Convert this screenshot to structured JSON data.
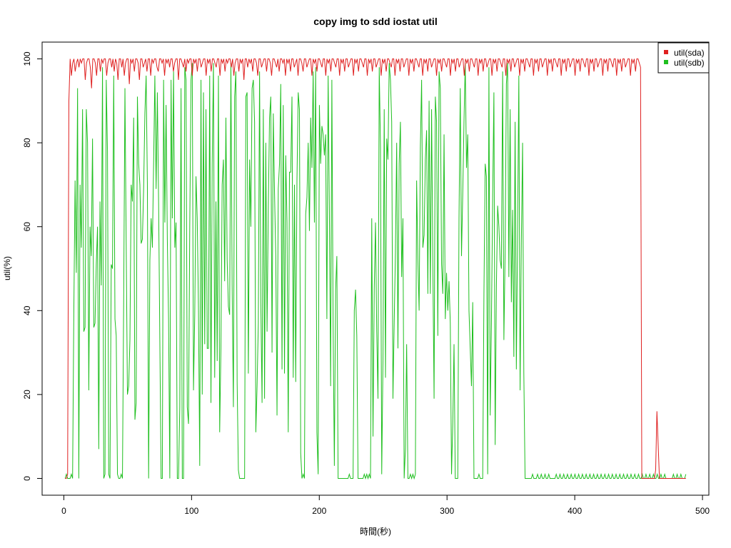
{
  "chart_data": {
    "type": "line",
    "title": "copy img to sdd iostat util",
    "xlabel": "時間(秒)",
    "ylabel": "util(%)",
    "xlim": [
      -17,
      505
    ],
    "ylim": [
      -4,
      104
    ],
    "x_ticks": [
      0,
      100,
      200,
      300,
      400,
      500
    ],
    "y_ticks": [
      0,
      20,
      40,
      60,
      80,
      100
    ],
    "x_tick_labels": [
      "0",
      "100",
      "200",
      "300",
      "400",
      "500"
    ],
    "y_tick_labels": [
      "0",
      "20",
      "40",
      "60",
      "80",
      "100"
    ],
    "legend": {
      "position": "top-right",
      "entries": [
        "util(sda)",
        "util(sdb)"
      ]
    },
    "grid": false,
    "x_start": 1,
    "x_end": 487,
    "series": [
      {
        "name": "util(sda)",
        "color": "#df2020",
        "values": [
          0,
          0,
          1,
          90,
          100,
          96,
          99,
          100,
          97,
          99,
          100,
          98,
          100,
          99,
          100,
          100,
          95,
          99,
          100,
          100,
          98,
          93,
          100,
          100,
          99,
          96,
          100,
          100,
          97,
          100,
          99,
          100,
          100,
          96,
          99,
          100,
          100,
          98,
          100,
          97,
          100,
          99,
          95,
          100,
          100,
          98,
          100,
          96,
          99,
          100,
          100,
          94,
          100,
          99,
          100,
          97,
          100,
          100,
          99,
          95,
          100,
          100,
          98,
          99,
          100,
          97,
          100,
          100,
          96,
          100,
          99,
          100,
          100,
          98,
          97,
          100,
          100,
          99,
          100,
          96,
          100,
          99,
          100,
          98,
          100,
          100,
          97,
          99,
          100,
          100,
          95,
          100,
          100,
          99,
          98,
          100,
          97,
          100,
          99,
          100,
          100,
          96,
          100,
          99,
          100,
          97,
          100,
          100,
          98,
          99,
          100,
          100,
          96,
          100,
          99,
          100,
          97,
          100,
          100,
          99,
          98,
          100,
          100,
          96,
          100,
          99,
          100,
          97,
          100,
          99,
          100,
          100,
          98,
          100,
          96,
          99,
          100,
          100,
          97,
          100,
          99,
          100,
          95,
          100,
          100,
          98,
          100,
          99,
          100,
          97,
          100,
          100,
          99,
          96,
          100,
          100,
          98,
          99,
          100,
          100,
          97,
          100,
          100,
          99,
          96,
          100,
          100,
          99,
          98,
          100,
          97,
          100,
          100,
          99,
          100,
          96,
          100,
          99,
          100,
          97,
          100,
          100,
          98,
          99,
          100,
          96,
          100,
          100,
          99,
          97,
          100,
          100,
          98,
          99,
          100,
          100,
          96,
          100,
          99,
          100,
          97,
          100,
          100,
          99,
          98,
          100,
          100,
          96,
          100,
          99,
          100,
          97,
          100,
          100,
          99,
          98,
          100,
          100,
          96,
          100,
          99,
          100,
          97,
          100,
          100,
          98,
          99,
          100,
          100,
          96,
          100,
          99,
          100,
          97,
          100,
          100,
          99,
          98,
          100,
          100,
          96,
          100,
          99,
          100,
          97,
          100,
          100,
          98,
          99,
          100,
          100,
          96,
          100,
          99,
          100,
          97,
          100,
          100,
          99,
          98,
          100,
          100,
          96,
          100,
          99,
          100,
          97,
          100,
          100,
          98,
          99,
          100,
          100,
          96,
          100,
          99,
          100,
          97,
          100,
          100,
          99,
          98,
          100,
          100,
          96,
          100,
          99,
          100,
          97,
          100,
          100,
          98,
          99,
          100,
          100,
          96,
          100,
          99,
          100,
          97,
          100,
          100,
          99,
          98,
          100,
          100,
          96,
          100,
          99,
          100,
          97,
          100,
          100,
          98,
          99,
          100,
          100,
          96,
          100,
          99,
          100,
          97,
          100,
          100,
          99,
          98,
          100,
          100,
          96,
          100,
          99,
          100,
          97,
          100,
          100,
          98,
          99,
          100,
          100,
          96,
          100,
          99,
          100,
          97,
          100,
          100,
          99,
          98,
          100,
          100,
          96,
          100,
          99,
          100,
          97,
          100,
          100,
          98,
          99,
          100,
          100,
          96,
          100,
          99,
          100,
          97,
          100,
          100,
          99,
          98,
          100,
          100,
          96,
          100,
          99,
          100,
          97,
          100,
          100,
          98,
          99,
          100,
          100,
          96,
          100,
          99,
          100,
          97,
          100,
          100,
          99,
          98,
          100,
          100,
          96,
          100,
          99,
          100,
          97,
          100,
          100,
          98,
          99,
          100,
          100,
          96,
          100,
          99,
          100,
          97,
          100,
          100,
          99,
          98,
          100,
          100,
          96,
          100,
          99,
          100,
          97,
          100,
          100,
          98,
          99,
          100,
          100,
          96,
          100,
          99,
          100,
          97,
          100,
          100,
          99,
          98,
          100,
          100,
          96,
          100,
          99,
          100,
          97,
          100,
          100,
          98,
          99,
          100,
          100,
          96,
          100,
          99,
          100,
          97,
          100,
          100,
          99,
          98,
          0,
          0,
          0,
          0,
          0,
          0,
          0,
          0,
          0,
          0,
          0,
          2,
          16,
          8,
          0,
          0,
          0,
          0,
          0,
          0,
          0,
          0,
          0,
          0,
          0,
          0,
          0,
          0,
          0,
          0,
          0,
          0,
          0,
          0,
          0,
          0
        ]
      },
      {
        "name": "util(sdb)",
        "color": "#1fbf1f",
        "values": [
          0,
          1,
          0,
          0,
          0,
          1,
          0,
          40,
          71,
          49,
          93,
          0,
          70,
          55,
          88,
          35,
          36,
          88,
          80,
          21,
          60,
          53,
          81,
          36,
          37,
          51,
          60,
          7,
          66,
          46,
          98,
          0,
          1,
          95,
          78,
          1,
          0,
          51,
          50,
          96,
          38,
          34,
          1,
          0,
          0,
          1,
          0,
          43,
          93,
          56,
          20,
          22,
          33,
          70,
          66,
          86,
          14,
          18,
          91,
          75,
          70,
          56,
          57,
          69,
          87,
          96,
          70,
          0,
          52,
          62,
          55,
          75,
          96,
          69,
          92,
          66,
          33,
          0,
          0,
          95,
          61,
          89,
          57,
          38,
          0,
          95,
          62,
          97,
          55,
          61,
          0,
          0,
          17,
          93,
          0,
          0,
          98,
          95,
          17,
          13,
          60,
          95,
          99,
          21,
          39,
          72,
          62,
          40,
          3,
          95,
          20,
          92,
          32,
          88,
          31,
          31,
          96,
          18,
          75,
          99,
          24,
          66,
          28,
          96,
          11,
          31,
          70,
          76,
          47,
          86,
          52,
          41,
          39,
          99,
          46,
          17,
          91,
          97,
          23,
          2,
          0,
          0,
          0,
          0,
          0,
          91,
          92,
          25,
          76,
          60,
          93,
          95,
          85,
          11,
          22,
          37,
          97,
          42,
          18,
          88,
          19,
          80,
          35,
          64,
          86,
          91,
          30,
          87,
          68,
          53,
          15,
          69,
          75,
          94,
          26,
          89,
          25,
          77,
          61,
          11,
          73,
          73,
          91,
          24,
          70,
          23,
          71,
          92,
          88,
          6,
          0,
          1,
          0,
          63,
          67,
          80,
          59,
          86,
          74,
          97,
          61,
          98,
          11,
          1,
          89,
          75,
          84,
          82,
          77,
          82,
          38,
          96,
          64,
          22,
          95,
          36,
          3,
          45,
          53,
          0,
          0,
          0,
          0,
          0,
          0,
          0,
          0,
          0,
          1,
          0,
          0,
          0,
          40,
          45,
          34,
          0,
          0,
          0,
          0,
          0,
          1,
          0,
          1,
          0,
          1,
          0,
          62,
          10,
          45,
          61,
          35,
          19,
          98,
          79,
          1,
          28,
          88,
          24,
          81,
          76,
          99,
          95,
          85,
          19,
          37,
          54,
          80,
          31,
          75,
          85,
          48,
          62,
          0,
          7,
          32,
          0,
          0,
          1,
          0,
          1,
          0,
          1,
          71,
          52,
          40,
          79,
          95,
          55,
          58,
          76,
          83,
          44,
          90,
          44,
          88,
          51,
          19,
          91,
          85,
          34,
          97,
          93,
          51,
          44,
          82,
          38,
          49,
          40,
          47,
          37,
          1,
          13,
          32,
          0,
          0,
          0,
          62,
          93,
          53,
          68,
          85,
          99,
          74,
          82,
          40,
          31,
          22,
          42,
          0,
          0,
          0,
          0,
          1,
          0,
          0,
          0,
          44,
          75,
          72,
          1,
          98,
          15,
          37,
          67,
          92,
          8,
          46,
          65,
          60,
          52,
          50,
          97,
          33,
          54,
          94,
          99,
          48,
          88,
          42,
          64,
          29,
          85,
          26,
          59,
          96,
          21,
          56,
          80,
          25,
          0,
          0,
          0,
          0,
          0,
          0,
          1,
          0,
          0,
          0,
          1,
          0,
          0,
          1,
          0,
          0,
          1,
          0,
          0,
          1,
          0,
          0,
          0,
          0,
          0,
          1,
          0,
          0,
          1,
          0,
          0,
          1,
          0,
          0,
          1,
          0,
          0,
          1,
          0,
          0,
          1,
          0,
          0,
          1,
          0,
          0,
          1,
          0,
          0,
          1,
          0,
          0,
          1,
          0,
          0,
          1,
          0,
          0,
          1,
          0,
          0,
          1,
          0,
          0,
          1,
          0,
          0,
          1,
          0,
          0,
          1,
          0,
          0,
          1,
          0,
          0,
          1,
          0,
          0,
          1,
          0,
          0,
          1,
          0,
          0,
          1,
          0,
          0,
          1,
          0,
          0,
          1,
          0,
          0,
          1,
          0,
          0,
          1,
          0,
          0,
          1,
          0,
          0,
          1,
          0,
          0,
          1,
          0,
          0,
          1,
          0,
          0,
          1,
          0,
          0,
          0,
          0,
          0,
          0,
          1,
          0,
          0,
          1,
          0,
          0,
          1,
          0,
          0,
          0,
          1
        ]
      }
    ]
  }
}
